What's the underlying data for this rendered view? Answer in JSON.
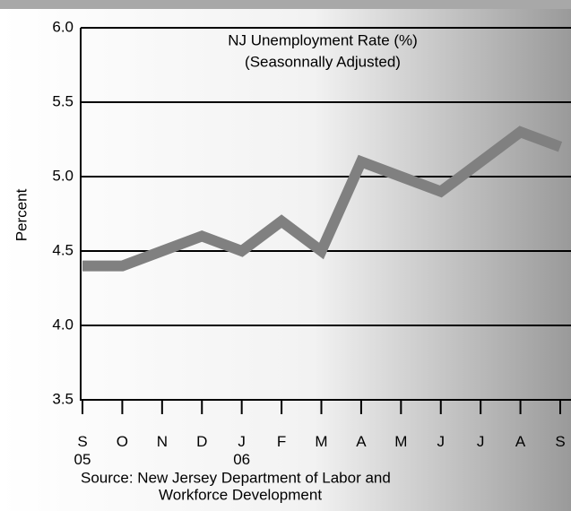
{
  "chart_data": {
    "type": "line",
    "title": "NJ Unemployment Rate (%)",
    "subtitle": "(Seasonnally Adjusted)",
    "y_label": "Percent",
    "source": [
      "Source:  New Jersey Department of Labor and",
      "Workforce Development"
    ],
    "categories": [
      "S\n05",
      "O",
      "N",
      "D",
      "J\n06",
      "F",
      "M",
      "A",
      "M",
      "J",
      "J",
      "A",
      "S"
    ],
    "values": [
      4.4,
      4.4,
      4.5,
      4.6,
      4.5,
      4.7,
      4.5,
      5.1,
      5.0,
      4.9,
      5.1,
      5.3,
      5.2
    ],
    "color": "#808080",
    "ylim": [
      3.5,
      6.0
    ],
    "yticks": [
      {
        "value": 3.5,
        "label": "3.5"
      },
      {
        "value": 4,
        "label": "4.0"
      },
      4.5,
      {
        "value": 5,
        "label": "5.0"
      },
      5.5,
      {
        "value": 6,
        "label": "6.0"
      }
    ],
    "grid": true
  }
}
